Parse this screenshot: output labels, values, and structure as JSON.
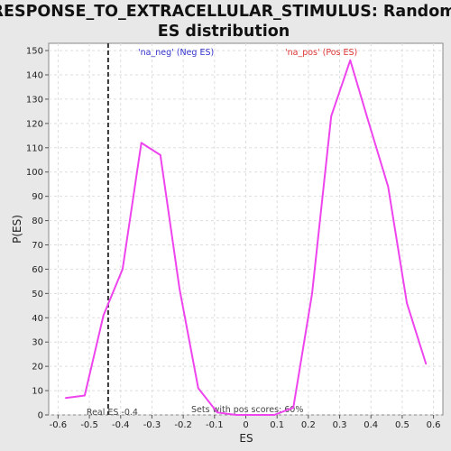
{
  "chart_data": {
    "type": "line",
    "title_line1": "RESPONSE_TO_EXTRACELLULAR_STIMULUS: Random",
    "title_line2": "ES distribution",
    "xlabel": "ES",
    "ylabel": "P(ES)",
    "xlim": [
      -0.63,
      0.63
    ],
    "ylim": [
      0,
      153
    ],
    "xticks": [
      -0.6,
      -0.5,
      -0.4,
      -0.3,
      -0.2,
      -0.1,
      0,
      0.1,
      0.2,
      0.3,
      0.4,
      0.5,
      0.6
    ],
    "xtick_labels": [
      "-0.6",
      "-0.5",
      "-0.4",
      "-0.3",
      "-0.2",
      "-0.1",
      "0",
      "0.1",
      "0.2",
      "0.3",
      "0.4",
      "0.5",
      "0.6"
    ],
    "yticks": [
      0,
      10,
      20,
      30,
      40,
      50,
      60,
      70,
      80,
      90,
      100,
      110,
      120,
      130,
      140,
      150
    ],
    "grid": true,
    "series": [
      {
        "color": "#ee44ee",
        "x": [
          -0.576,
          -0.515,
          -0.455,
          -0.394,
          -0.334,
          -0.273,
          -0.212,
          -0.152,
          -0.091,
          -0.03,
          0.03,
          0.091,
          0.152,
          0.212,
          0.273,
          0.334,
          0.394,
          0.455,
          0.515,
          0.576
        ],
        "y": [
          7,
          8,
          41,
          60,
          112,
          107,
          52,
          11,
          1,
          0,
          0,
          0,
          3,
          50,
          123,
          146,
          120,
          94,
          46,
          21
        ]
      }
    ],
    "annotations": {
      "neg_label": "'na_neg' (Neg ES)",
      "neg_color": "#3333cc",
      "pos_label": "'na_pos' (Pos ES)",
      "pos_color": "#dd3333",
      "real_es_label": "Real ES -0.4",
      "real_es_x": -0.44,
      "sets_label": "Sets with pos scores: 60%"
    }
  }
}
